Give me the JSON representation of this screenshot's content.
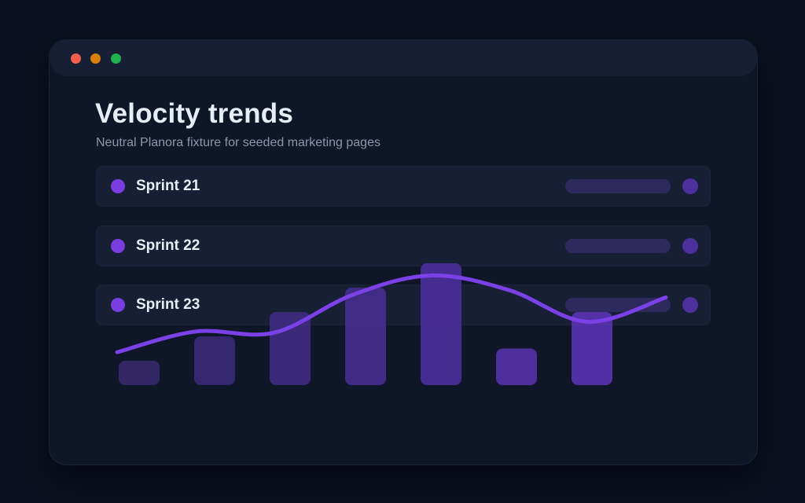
{
  "window": {
    "controls": [
      "close",
      "minimize",
      "maximize"
    ],
    "control_colors": [
      "#f0604d",
      "#d97f0c",
      "#1fb24f"
    ]
  },
  "header": {
    "title": "Velocity trends",
    "subtitle": "Neutral Planora fixture for seeded marketing pages"
  },
  "sprints": [
    {
      "label": "Sprint 21"
    },
    {
      "label": "Sprint 22"
    },
    {
      "label": "Sprint 23"
    }
  ],
  "colors": {
    "accent": "#7a3ee0",
    "background": "#0b1020",
    "panel": "#0f1628",
    "row": "#161f33"
  },
  "chart_data": {
    "type": "bar",
    "values": [
      1,
      2,
      3,
      4,
      5,
      1.5,
      3
    ],
    "line_values": [
      1.35,
      2.2,
      2.15,
      3.7,
      4.5,
      3.9,
      2.6,
      3.6
    ],
    "ylim": [
      0,
      5
    ],
    "grid": false,
    "bar_colors": [
      "#3a2a73",
      "#3d2b7c",
      "#432d8a",
      "#4a2f97",
      "#5231a8",
      "#5b33b5",
      "#6034c0"
    ],
    "line_color": "#7b40e6"
  }
}
